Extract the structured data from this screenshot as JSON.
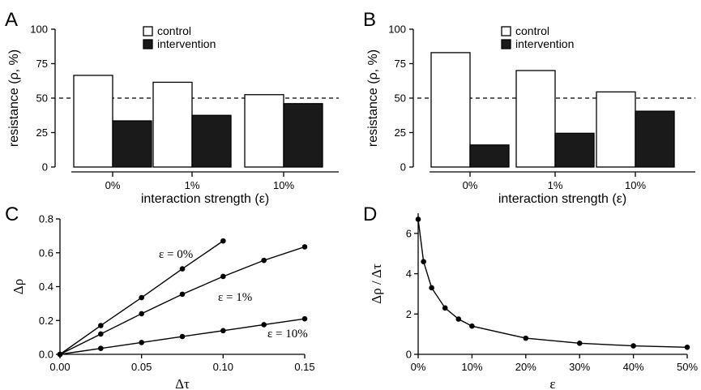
{
  "chart_data": [
    {
      "panel": "A",
      "type": "bar",
      "categories": [
        "0%",
        "1%",
        "10%"
      ],
      "series": [
        {
          "name": "control",
          "values": [
            66.5,
            61.5,
            52.5
          ],
          "color": "#ffffff"
        },
        {
          "name": "intervention",
          "values": [
            33.5,
            37.5,
            46
          ],
          "color": "#1a1a1a"
        }
      ],
      "xlabel": "interaction strength (ε)",
      "ylabel": "resistance (ρ, %)",
      "ylim": [
        0,
        100
      ],
      "yticks": [
        "0",
        "25",
        "50",
        "75",
        "100"
      ],
      "reference_line": 50,
      "legend": "top-center"
    },
    {
      "panel": "B",
      "type": "bar",
      "categories": [
        "0%",
        "1%",
        "10%"
      ],
      "series": [
        {
          "name": "control",
          "values": [
            83,
            70,
            54.5
          ],
          "color": "#ffffff"
        },
        {
          "name": "intervention",
          "values": [
            16,
            24.5,
            40.5
          ],
          "color": "#1a1a1a"
        }
      ],
      "xlabel": "interaction strength (ε)",
      "ylabel": "resistance (ρ, %)",
      "ylim": [
        0,
        100
      ],
      "yticks": [
        "0",
        "25",
        "50",
        "75",
        "100"
      ],
      "reference_line": 50,
      "legend": "top-center"
    },
    {
      "panel": "C",
      "type": "line",
      "xlabel": "Δτ",
      "ylabel": "Δρ",
      "xlim": [
        0,
        0.15
      ],
      "ylim": [
        0,
        0.8
      ],
      "xticks": [
        "0.00",
        "0.05",
        "0.10",
        "0.15"
      ],
      "yticks": [
        "0.0",
        "0.2",
        "0.4",
        "0.6",
        "0.8"
      ],
      "series": [
        {
          "name": "ε = 0%",
          "x": [
            0,
            0.025,
            0.05,
            0.075,
            0.1
          ],
          "y": [
            0,
            0.17,
            0.335,
            0.505,
            0.67
          ]
        },
        {
          "name": "ε = 1%",
          "x": [
            0,
            0.025,
            0.05,
            0.075,
            0.1,
            0.125,
            0.15
          ],
          "y": [
            0,
            0.12,
            0.24,
            0.355,
            0.46,
            0.555,
            0.635
          ]
        },
        {
          "name": "ε = 10%",
          "x": [
            0,
            0.025,
            0.05,
            0.075,
            0.1,
            0.125,
            0.15
          ],
          "y": [
            0,
            0.035,
            0.07,
            0.105,
            0.14,
            0.175,
            0.21
          ]
        }
      ]
    },
    {
      "panel": "D",
      "type": "line",
      "xlabel": "ε",
      "ylabel": "Δρ / Δτ",
      "xlim": [
        0,
        50
      ],
      "ylim": [
        0,
        7
      ],
      "xticks": [
        "0%",
        "10%",
        "20%",
        "30%",
        "40%",
        "50%"
      ],
      "yticks": [
        "0",
        "2",
        "4",
        "6"
      ],
      "series": [
        {
          "x": [
            0,
            1,
            2.5,
            5,
            7.5,
            10,
            20,
            30,
            40,
            50
          ],
          "y": [
            6.7,
            4.6,
            3.3,
            2.3,
            1.75,
            1.4,
            0.8,
            0.55,
            0.42,
            0.35
          ]
        }
      ]
    }
  ],
  "panels": {
    "a": "A",
    "b": "B",
    "c": "C",
    "d": "D"
  }
}
